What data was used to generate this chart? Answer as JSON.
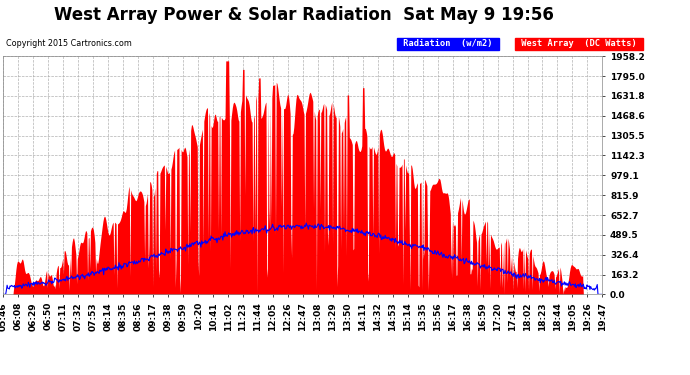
{
  "title": "West Array Power & Solar Radiation  Sat May 9 19:56",
  "copyright": "Copyright 2015 Cartronics.com",
  "legend_radiation": "Radiation  (w/m2)",
  "legend_west": "West Array  (DC Watts)",
  "y_ticks": [
    0.0,
    163.2,
    326.4,
    489.5,
    652.7,
    815.9,
    979.1,
    1142.3,
    1305.5,
    1468.6,
    1631.8,
    1795.0,
    1958.2
  ],
  "y_max": 1958.2,
  "y_min": 0.0,
  "background_color": "#ffffff",
  "grid_color": "#aaaaaa",
  "title_fontsize": 12,
  "axis_fontsize": 6.5,
  "x_tick_labels": [
    "05:46",
    "06:08",
    "06:29",
    "06:50",
    "07:11",
    "07:32",
    "07:53",
    "08:14",
    "08:35",
    "08:56",
    "09:17",
    "09:38",
    "09:59",
    "10:20",
    "10:41",
    "11:02",
    "11:23",
    "11:44",
    "12:05",
    "12:26",
    "12:47",
    "13:08",
    "13:29",
    "13:50",
    "14:11",
    "14:32",
    "14:53",
    "15:14",
    "15:35",
    "15:56",
    "16:17",
    "16:38",
    "16:59",
    "17:20",
    "17:41",
    "18:02",
    "18:23",
    "18:44",
    "19:05",
    "19:26",
    "19:47"
  ]
}
